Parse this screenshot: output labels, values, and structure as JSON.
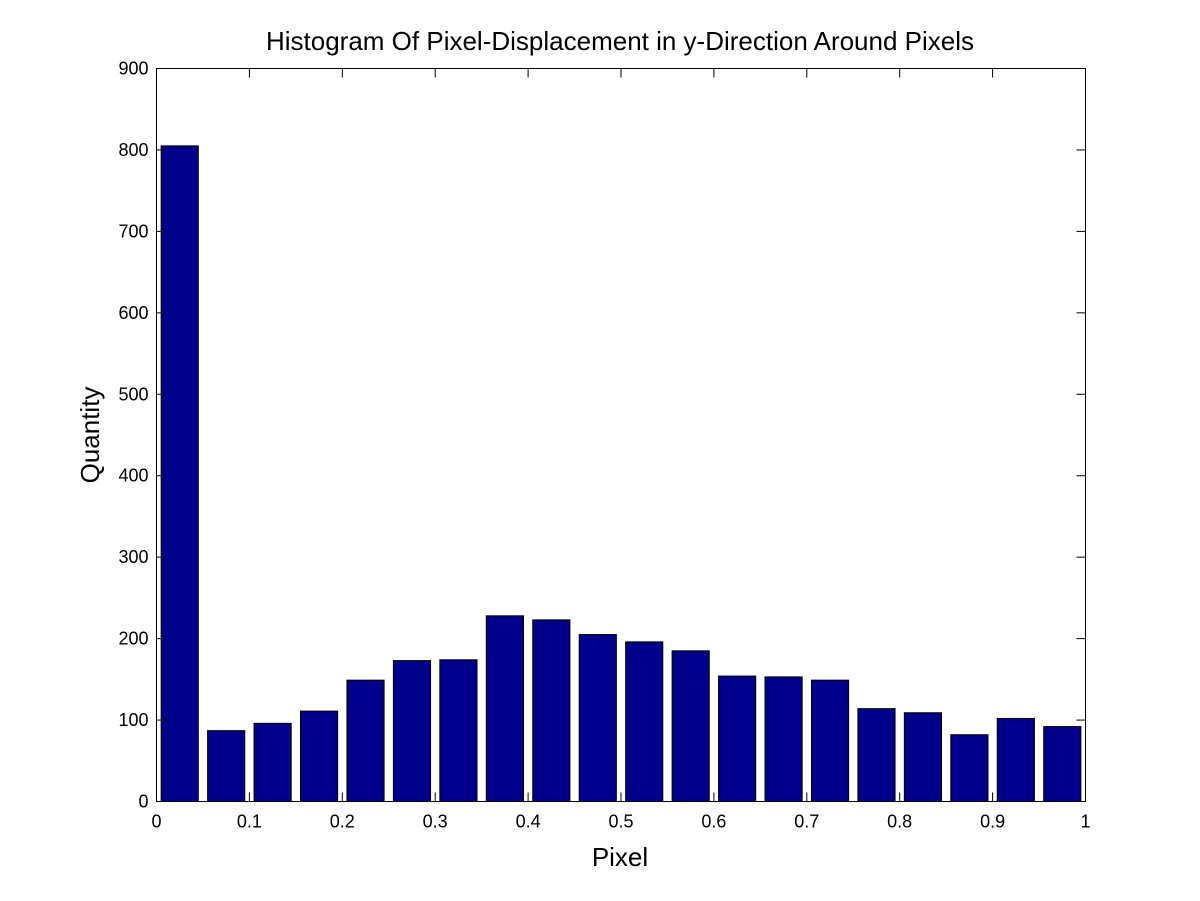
{
  "chart_data": {
    "type": "bar",
    "title": "Histogram Of Pixel-Displacement in y-Direction Around Pixels",
    "xlabel": "Pixel",
    "ylabel": "Quantity",
    "xlim": [
      0,
      1
    ],
    "ylim": [
      0,
      900
    ],
    "grid": false,
    "bar_color": "#00008B",
    "bar_centers": [
      0.025,
      0.075,
      0.125,
      0.175,
      0.225,
      0.275,
      0.325,
      0.375,
      0.425,
      0.475,
      0.525,
      0.575,
      0.625,
      0.675,
      0.725,
      0.775,
      0.825,
      0.875,
      0.925,
      0.975
    ],
    "values": [
      805,
      87,
      96,
      111,
      149,
      173,
      174,
      228,
      223,
      205,
      196,
      185,
      154,
      153,
      149,
      114,
      109,
      82,
      102,
      92
    ],
    "x_ticks": [
      0,
      0.1,
      0.2,
      0.3,
      0.4,
      0.5,
      0.6,
      0.7,
      0.8,
      0.9,
      1
    ],
    "x_tick_labels": [
      "0",
      "0.1",
      "0.2",
      "0.3",
      "0.4",
      "0.5",
      "0.6",
      "0.7",
      "0.8",
      "0.9",
      "1"
    ],
    "y_ticks": [
      0,
      100,
      200,
      300,
      400,
      500,
      600,
      700,
      800,
      900
    ],
    "y_tick_labels": [
      "0",
      "100",
      "200",
      "300",
      "400",
      "500",
      "600",
      "700",
      "800",
      "900"
    ]
  }
}
